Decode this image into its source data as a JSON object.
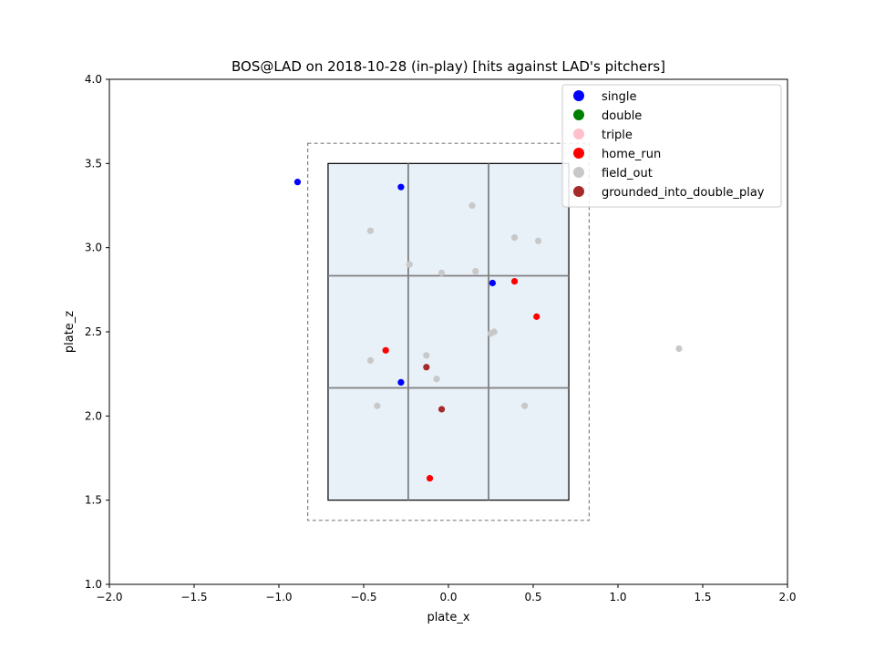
{
  "chart_data": {
    "type": "scatter",
    "title": "BOS@LAD on 2018-10-28 (in-play) [hits against LAD's pitchers]",
    "xlabel": "plate_x",
    "ylabel": "plate_z",
    "xlim": [
      -2.0,
      2.0
    ],
    "ylim": [
      1.0,
      4.0
    ],
    "xticks": [
      "−2.0",
      "−1.5",
      "−1.0",
      "−0.5",
      "0.0",
      "0.5",
      "1.0",
      "1.5",
      "2.0"
    ],
    "yticks": [
      "1.0",
      "1.5",
      "2.0",
      "2.5",
      "3.0",
      "3.5",
      "4.0"
    ],
    "grid": false,
    "legend_position": "top-right",
    "strike_zone": {
      "x": [
        -0.71,
        0.71
      ],
      "z": [
        1.5,
        3.5
      ],
      "thirds_x": [
        -0.237,
        0.237
      ],
      "thirds_z": [
        2.167,
        2.833
      ],
      "fill": "#e8f0f8"
    },
    "outer_zone": {
      "x": [
        -0.83,
        0.83
      ],
      "z": [
        1.38,
        3.62
      ]
    },
    "series": [
      {
        "name": "single",
        "color": "#0000ff",
        "x": [
          -0.89,
          -0.28,
          0.26,
          -0.28
        ],
        "y": [
          3.39,
          3.36,
          2.79,
          2.2
        ]
      },
      {
        "name": "double",
        "color": "#008000",
        "x": [],
        "y": []
      },
      {
        "name": "triple",
        "color": "#ffc0cb",
        "x": [],
        "y": []
      },
      {
        "name": "home_run",
        "color": "#ff0000",
        "x": [
          0.39,
          0.52,
          -0.37,
          -0.11
        ],
        "y": [
          2.8,
          2.59,
          2.39,
          1.63
        ]
      },
      {
        "name": "field_out",
        "color": "#c8c8c8",
        "x": [
          0.14,
          -0.46,
          0.39,
          0.53,
          -0.23,
          -0.04,
          0.16,
          0.27,
          0.25,
          -0.13,
          -0.46,
          -0.07,
          -0.42,
          0.45,
          1.36
        ],
        "y": [
          3.25,
          3.1,
          3.06,
          3.04,
          2.9,
          2.85,
          2.86,
          2.5,
          2.49,
          2.36,
          2.33,
          2.22,
          2.06,
          2.06,
          2.4
        ]
      },
      {
        "name": "grounded_into_double_play",
        "color": "#a52a2a",
        "x": [
          -0.13,
          -0.04
        ],
        "y": [
          2.29,
          2.04
        ]
      }
    ]
  }
}
